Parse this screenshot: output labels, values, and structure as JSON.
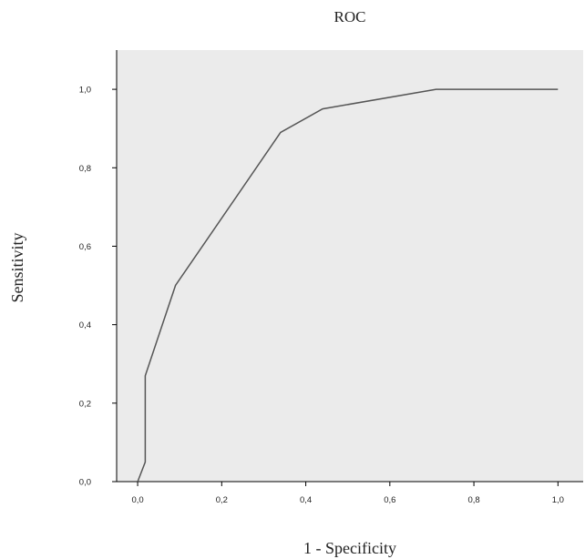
{
  "chart_data": {
    "type": "line",
    "title": "ROC",
    "xlabel": "1 - Specificity",
    "ylabel": "Sensitivity",
    "xlim": [
      -0.05,
      1.06
    ],
    "ylim": [
      0.0,
      1.1
    ],
    "xticks": [
      "0,0",
      "0,2",
      "0,4",
      "0,6",
      "0,8",
      "1,0"
    ],
    "yticks": [
      "0,0",
      "0,2",
      "0,4",
      "0,6",
      "0,8",
      "1,0"
    ],
    "grid": false,
    "colors": {
      "plot_background": "#ebebeb",
      "line": "#555555",
      "axis": "#000000"
    },
    "series": [
      {
        "x": [
          0.0,
          0.018,
          0.018,
          0.09,
          0.34,
          0.44,
          0.71,
          1.0
        ],
        "y": [
          0.0,
          0.05,
          0.27,
          0.5,
          0.89,
          0.95,
          1.0,
          1.0
        ]
      }
    ]
  }
}
